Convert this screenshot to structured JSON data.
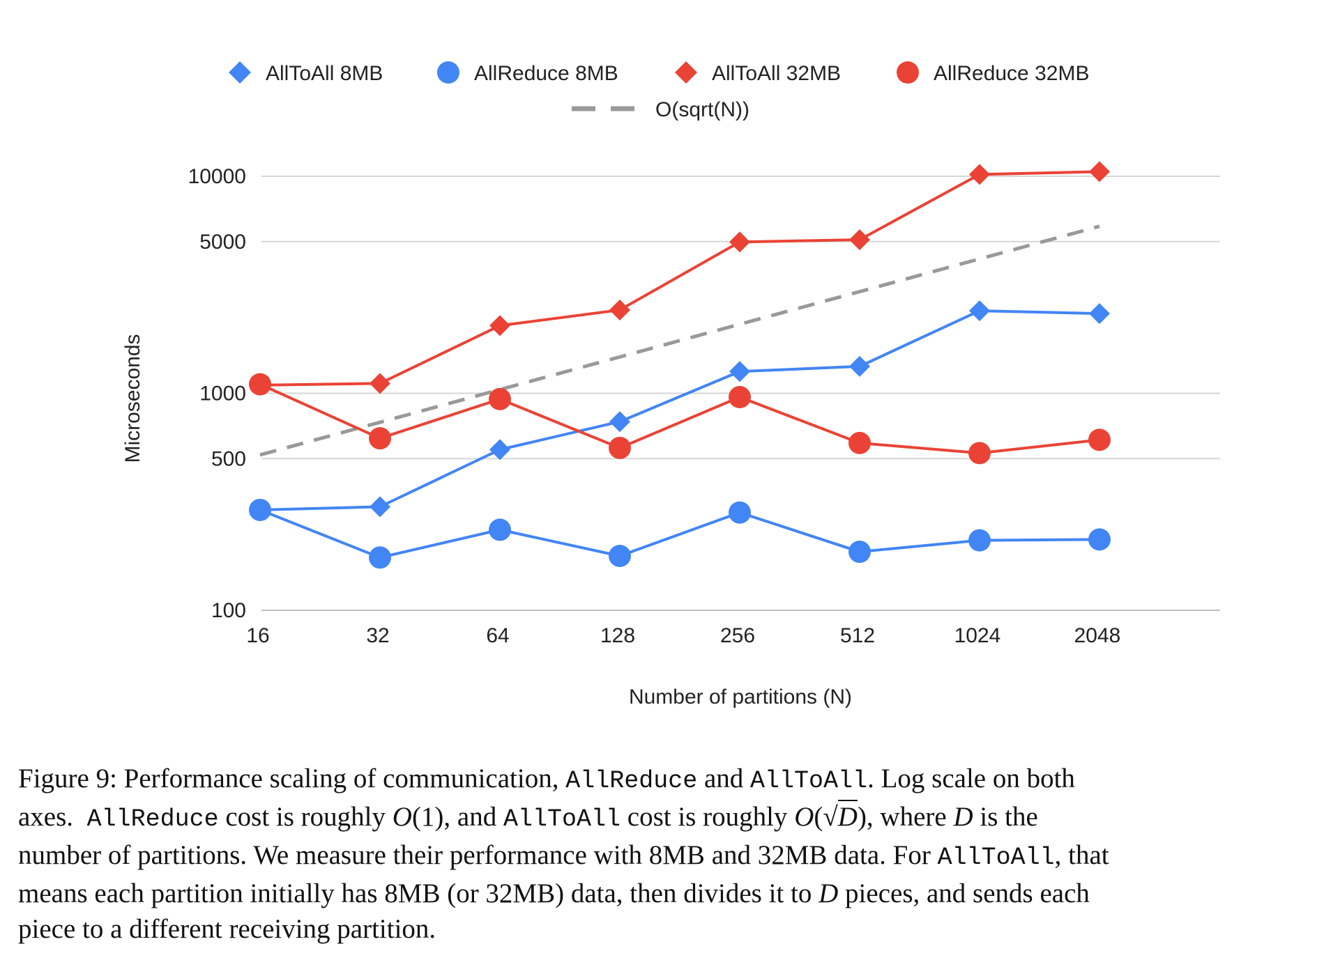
{
  "chart_data": {
    "type": "line",
    "title": "",
    "xlabel": "Number of partitions (N)",
    "ylabel": "Microseconds",
    "x_scale": "log",
    "y_scale": "log",
    "ylim": [
      100,
      12000
    ],
    "yticks": [
      100,
      500,
      1000,
      5000,
      10000
    ],
    "categories": [
      "16",
      "32",
      "64",
      "128",
      "256",
      "512",
      "1024",
      "2048"
    ],
    "grid": true,
    "legend_position": "top",
    "series": [
      {
        "name": "AllToAll 8MB",
        "color": "#4285F4",
        "marker": "diamond",
        "style": "solid",
        "values": [
          290,
          300,
          550,
          740,
          1260,
          1330,
          2400,
          2330
        ]
      },
      {
        "name": "AllReduce 8MB",
        "color": "#4285F4",
        "marker": "circle",
        "style": "solid",
        "values": [
          290,
          175,
          235,
          178,
          282,
          186,
          210,
          212
        ]
      },
      {
        "name": "AllToAll 32MB",
        "color": "#EA4335",
        "marker": "diamond",
        "style": "solid",
        "values": [
          1090,
          1110,
          2050,
          2420,
          4980,
          5100,
          10200,
          10500
        ]
      },
      {
        "name": "AllReduce 32MB",
        "color": "#EA4335",
        "marker": "circle",
        "style": "solid",
        "values": [
          1100,
          620,
          940,
          560,
          960,
          590,
          530,
          610
        ]
      },
      {
        "name": "O(sqrt(N))",
        "color": "#999999",
        "marker": "none",
        "style": "dashed",
        "values": [
          520,
          735,
          1040,
          1470,
          2080,
          2940,
          4160,
          5880
        ]
      }
    ]
  },
  "caption": {
    "line1": {
      "p1": "Figure 9: Performance scaling of communication, ",
      "c1": "AllReduce",
      "p2": " and ",
      "c2": "AllToAll",
      "p3": ". Log scale on both"
    },
    "line2": {
      "p1": "axes.  ",
      "c1": "AllReduce",
      "p2": " cost is roughly ",
      "m1": "O",
      "p3": "(1), and ",
      "c2": "AllToAll",
      "p4": " cost is roughly ",
      "m2": "O",
      "p5": "(√",
      "m3": "D",
      "p6": "), where ",
      "m4": "D",
      "p7": " is the"
    },
    "line3": {
      "p1": "number of partitions. We measure their performance with 8MB and 32MB data. For ",
      "c1": "AllToAll",
      "p2": ", that"
    },
    "line4": {
      "p1": "means each partition initially has 8MB (or 32MB) data, then divides it to ",
      "m1": "D",
      "p2": " pieces, and sends each"
    },
    "line5": {
      "p1": "piece to a different receiving partition."
    }
  }
}
